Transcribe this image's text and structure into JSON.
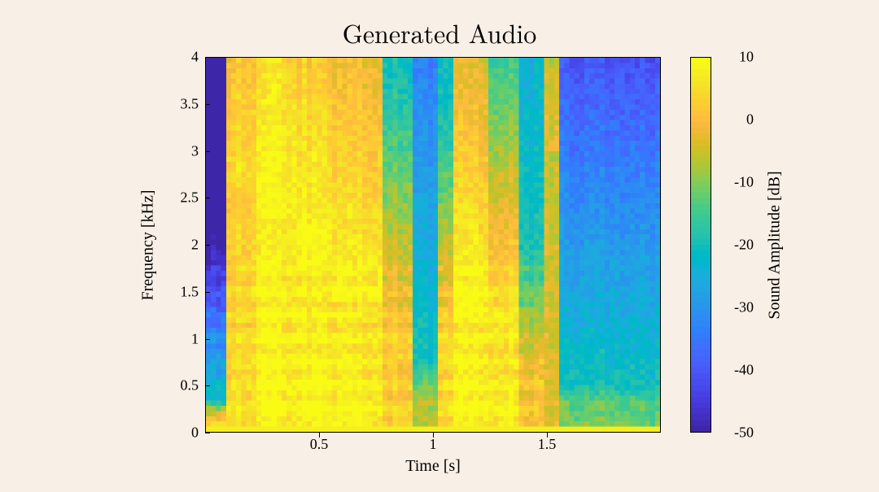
{
  "title": "Generated Audio",
  "xlabel": "Time [s]",
  "ylabel": "Frequency [kHz]",
  "clabel": "Sound Amplitude [dB]",
  "chart": {
    "type": "spectrogram",
    "background_color": "#f8efe6",
    "xlim": [
      0,
      2.0
    ],
    "ylim": [
      0,
      4.0
    ],
    "clim": [
      -50,
      10
    ],
    "xticks": [
      0.5,
      1.0,
      1.5
    ],
    "xtick_labels": [
      "0.5",
      "1",
      "1.5"
    ],
    "yticks": [
      0,
      0.5,
      1.0,
      1.5,
      2.0,
      2.5,
      3.0,
      3.5,
      4.0
    ],
    "ytick_labels": [
      "0",
      "0.5",
      "1",
      "1.5",
      "2",
      "2.5",
      "3",
      "3.5",
      "4"
    ],
    "cticks": [
      -50,
      -40,
      -30,
      -20,
      -10,
      0,
      10
    ],
    "ctick_labels": [
      "-50",
      "-40",
      "-30",
      "-20",
      "-10",
      "0",
      "10"
    ],
    "title_fontsize": 32,
    "label_fontsize": 20,
    "tick_fontsize": 18,
    "grid_nx": 90,
    "grid_ny": 72,
    "floor_db": -20,
    "noise_db": 6,
    "events": [
      {
        "t_start": 0.0,
        "t_end": 0.1,
        "base_db": 8,
        "f_cut": 0.1,
        "slope": 120,
        "band_top_db": -36
      },
      {
        "t_start": 0.1,
        "t_end": 0.22,
        "base_db": 6,
        "f_cut": 2.6,
        "slope": 3.5,
        "band_top_db": -8
      },
      {
        "t_start": 0.22,
        "t_end": 0.4,
        "base_db": 10,
        "f_cut": 2.3,
        "slope": 3.0,
        "band_top_db": -5
      },
      {
        "t_start": 0.4,
        "t_end": 0.55,
        "base_db": 10,
        "f_cut": 1.8,
        "slope": 3.5,
        "band_top_db": -5
      },
      {
        "t_start": 0.55,
        "t_end": 0.78,
        "base_db": 9,
        "f_cut": 1.4,
        "slope": 4.0,
        "band_top_db": -8
      },
      {
        "t_start": 0.78,
        "t_end": 0.92,
        "base_db": 4,
        "f_cut": 0.8,
        "slope": 8.0,
        "band_top_db": -16
      },
      {
        "t_start": 0.92,
        "t_end": 1.02,
        "base_db": -6,
        "f_cut": 0.3,
        "slope": 30,
        "band_top_db": -30
      },
      {
        "t_start": 1.02,
        "t_end": 1.1,
        "base_db": 6,
        "f_cut": 0.8,
        "slope": 10,
        "band_top_db": -18
      },
      {
        "t_start": 1.1,
        "t_end": 1.24,
        "base_db": 10,
        "f_cut": 1.3,
        "slope": 5.0,
        "band_top_db": -10
      },
      {
        "t_start": 1.24,
        "t_end": 1.38,
        "base_db": 9,
        "f_cut": 1.0,
        "slope": 8.0,
        "band_top_db": -14
      },
      {
        "t_start": 1.24,
        "t_end": 1.36,
        "base_db": 6,
        "f_cut": 3.7,
        "slope": 0.5,
        "band_top_db": -6,
        "narrow": true,
        "center_khz": 3.2,
        "half_width": 0.6
      },
      {
        "t_start": 1.38,
        "t_end": 1.5,
        "base_db": 2,
        "f_cut": 0.5,
        "slope": 14,
        "band_top_db": -22
      },
      {
        "t_start": 1.5,
        "t_end": 1.55,
        "base_db": -2,
        "f_cut": 3.0,
        "slope": 3.0,
        "band_top_db": -12
      },
      {
        "t_start": 1.55,
        "t_end": 2.0,
        "base_db": -10,
        "f_cut": 0.25,
        "slope": 40,
        "band_top_db": -28
      }
    ],
    "colormap": "parula",
    "parula_stops": [
      [
        0.2422,
        0.1504,
        0.6603
      ],
      [
        0.2504,
        0.165,
        0.7076
      ],
      [
        0.2578,
        0.1818,
        0.7511
      ],
      [
        0.2647,
        0.1978,
        0.7952
      ],
      [
        0.2706,
        0.2147,
        0.8364
      ],
      [
        0.2751,
        0.2342,
        0.871
      ],
      [
        0.2783,
        0.2559,
        0.8991
      ],
      [
        0.2803,
        0.2782,
        0.9221
      ],
      [
        0.2813,
        0.3006,
        0.9414
      ],
      [
        0.281,
        0.3228,
        0.9579
      ],
      [
        0.2795,
        0.3447,
        0.9717
      ],
      [
        0.276,
        0.3667,
        0.9829
      ],
      [
        0.2699,
        0.3892,
        0.9906
      ],
      [
        0.2602,
        0.4123,
        0.9952
      ],
      [
        0.244,
        0.4358,
        0.9988
      ],
      [
        0.2206,
        0.4603,
        0.9973
      ],
      [
        0.1963,
        0.4847,
        0.9892
      ],
      [
        0.1834,
        0.5074,
        0.9798
      ],
      [
        0.1786,
        0.5289,
        0.9682
      ],
      [
        0.1764,
        0.5499,
        0.952
      ],
      [
        0.1687,
        0.5703,
        0.9359
      ],
      [
        0.154,
        0.5902,
        0.9218
      ],
      [
        0.146,
        0.6091,
        0.9079
      ],
      [
        0.138,
        0.6276,
        0.8973
      ],
      [
        0.1248,
        0.6459,
        0.8883
      ],
      [
        0.1113,
        0.6635,
        0.8763
      ],
      [
        0.0952,
        0.6798,
        0.8598
      ],
      [
        0.0689,
        0.6948,
        0.8394
      ],
      [
        0.0297,
        0.7082,
        0.8163
      ],
      [
        0.0036,
        0.7203,
        0.7917
      ],
      [
        0.0067,
        0.7312,
        0.766
      ],
      [
        0.0433,
        0.7411,
        0.7394
      ],
      [
        0.0964,
        0.75,
        0.712
      ],
      [
        0.1408,
        0.7584,
        0.6842
      ],
      [
        0.1717,
        0.767,
        0.6554
      ],
      [
        0.1938,
        0.7758,
        0.6251
      ],
      [
        0.2161,
        0.7843,
        0.5923
      ],
      [
        0.247,
        0.7918,
        0.5567
      ],
      [
        0.2906,
        0.7973,
        0.5188
      ],
      [
        0.3406,
        0.8008,
        0.4789
      ],
      [
        0.3909,
        0.8029,
        0.4354
      ],
      [
        0.4456,
        0.8024,
        0.3909
      ],
      [
        0.5044,
        0.7993,
        0.348
      ],
      [
        0.5616,
        0.7942,
        0.3045
      ],
      [
        0.6174,
        0.7876,
        0.2612
      ],
      [
        0.672,
        0.7793,
        0.2227
      ],
      [
        0.7242,
        0.7698,
        0.191
      ],
      [
        0.7738,
        0.7598,
        0.1646
      ],
      [
        0.8203,
        0.7498,
        0.1535
      ],
      [
        0.8634,
        0.7406,
        0.1596
      ],
      [
        0.9035,
        0.733,
        0.1774
      ],
      [
        0.9393,
        0.7288,
        0.21
      ],
      [
        0.9728,
        0.7298,
        0.2394
      ],
      [
        0.9956,
        0.7434,
        0.2371
      ],
      [
        0.997,
        0.7659,
        0.2199
      ],
      [
        0.9952,
        0.7893,
        0.2028
      ],
      [
        0.9892,
        0.8136,
        0.1885
      ],
      [
        0.9786,
        0.8386,
        0.1766
      ],
      [
        0.9676,
        0.8639,
        0.1643
      ],
      [
        0.961,
        0.889,
        0.1537
      ],
      [
        0.9597,
        0.9135,
        0.1423
      ],
      [
        0.9628,
        0.9373,
        0.1265
      ],
      [
        0.9691,
        0.9606,
        0.1064
      ],
      [
        0.9769,
        0.9839,
        0.0805
      ]
    ]
  }
}
